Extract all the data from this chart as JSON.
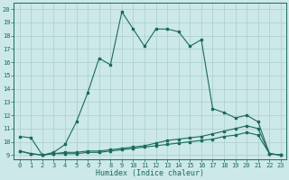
{
  "xlabel": "Humidex (Indice chaleur)",
  "xlim": [
    -0.5,
    23.5
  ],
  "ylim": [
    8.7,
    20.5
  ],
  "yticks": [
    9,
    10,
    11,
    12,
    13,
    14,
    15,
    16,
    17,
    18,
    19,
    20
  ],
  "xticks": [
    0,
    1,
    2,
    3,
    4,
    5,
    6,
    7,
    8,
    9,
    10,
    11,
    12,
    13,
    14,
    15,
    16,
    17,
    18,
    19,
    20,
    21,
    22,
    23
  ],
  "background_color": "#cce8e8",
  "grid_color": "#aacece",
  "line_color": "#1a6b5a",
  "line1_x": [
    0,
    1,
    2,
    3,
    4,
    5,
    6,
    7,
    8,
    9,
    10,
    11,
    12,
    13,
    14,
    15,
    16,
    17,
    18,
    19,
    20,
    21,
    22,
    23
  ],
  "line1_y": [
    10.4,
    10.3,
    9.0,
    9.2,
    9.8,
    11.5,
    13.7,
    16.3,
    15.8,
    19.8,
    18.5,
    17.2,
    18.5,
    18.5,
    18.3,
    17.2,
    17.7,
    12.5,
    12.2,
    11.8,
    12.0,
    11.5,
    9.1,
    9.0
  ],
  "line1_markers": [
    0,
    1,
    2,
    3,
    4,
    5,
    6,
    7,
    8,
    9,
    10,
    11,
    12,
    13,
    14,
    15,
    16,
    17,
    18,
    19,
    20,
    21,
    22,
    23
  ],
  "line2_x": [
    0,
    1,
    2,
    3,
    4,
    5,
    6,
    7,
    8,
    9,
    10,
    11,
    12,
    13,
    14,
    15,
    16,
    17,
    18,
    19,
    20,
    21,
    22,
    23
  ],
  "line2_y": [
    9.3,
    9.1,
    9.0,
    9.1,
    9.2,
    9.2,
    9.3,
    9.3,
    9.4,
    9.5,
    9.6,
    9.7,
    9.9,
    10.1,
    10.2,
    10.3,
    10.4,
    10.6,
    10.8,
    11.0,
    11.2,
    11.0,
    9.1,
    9.0
  ],
  "line2_markers": [
    0,
    1,
    2,
    3,
    4,
    5,
    6,
    7,
    8,
    9,
    10,
    11,
    12,
    13,
    14,
    15,
    16,
    17,
    18,
    19,
    20,
    21,
    22,
    23
  ],
  "line3_x": [
    0,
    1,
    2,
    3,
    4,
    5,
    6,
    7,
    8,
    9,
    10,
    11,
    12,
    13,
    14,
    15,
    16,
    17,
    18,
    19,
    20,
    21,
    22,
    23
  ],
  "line3_y": [
    9.3,
    9.1,
    9.0,
    9.1,
    9.1,
    9.1,
    9.2,
    9.2,
    9.3,
    9.4,
    9.5,
    9.6,
    9.7,
    9.8,
    9.9,
    10.0,
    10.1,
    10.2,
    10.4,
    10.5,
    10.7,
    10.5,
    9.1,
    9.0
  ],
  "line3_markers": [
    0,
    1,
    2,
    3,
    4,
    5,
    6,
    7,
    8,
    9,
    10,
    11,
    12,
    13,
    14,
    15,
    16,
    17,
    18,
    19,
    20,
    21,
    22,
    23
  ]
}
